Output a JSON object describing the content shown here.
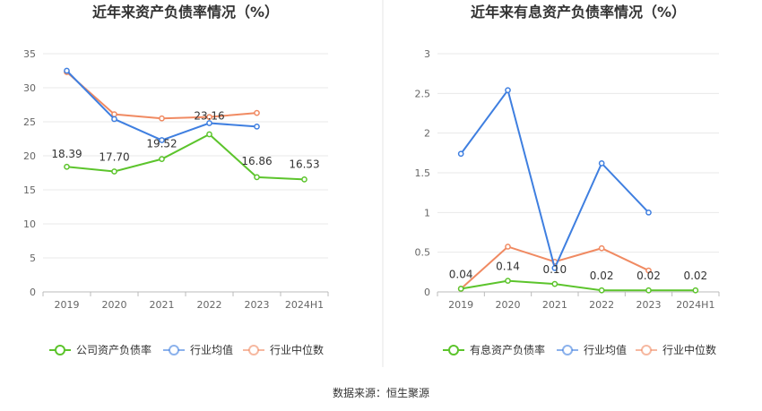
{
  "source": "数据来源：恒生聚源",
  "chart_data": [
    {
      "type": "line",
      "title": "近年来资产负债率情况（%）",
      "categories": [
        "2019",
        "2020",
        "2021",
        "2022",
        "2023",
        "2024H1"
      ],
      "y_ticks": [
        "0",
        "5",
        "10",
        "15",
        "20",
        "25",
        "30",
        "35"
      ],
      "ylim": [
        0,
        35
      ],
      "grid": true,
      "legend_position": "bottom",
      "series": [
        {
          "name": "公司资产负债率",
          "color": "#5cc42c",
          "values": [
            18.39,
            17.7,
            19.52,
            23.16,
            16.86,
            16.53
          ],
          "labels": [
            "18.39",
            "17.70",
            "19.52",
            "23.16",
            "16.86",
            "16.53"
          ]
        },
        {
          "name": "行业均值",
          "color": "#3f7fe0",
          "values": [
            32.5,
            25.4,
            22.3,
            24.8,
            24.3,
            null
          ]
        },
        {
          "name": "行业中位数",
          "color": "#f08a62",
          "values": [
            32.3,
            26.1,
            25.5,
            25.7,
            26.3,
            null
          ]
        }
      ]
    },
    {
      "type": "line",
      "title": "近年来有息资产负债率情况（%）",
      "categories": [
        "2019",
        "2020",
        "2021",
        "2022",
        "2023",
        "2024H1"
      ],
      "y_ticks": [
        "0",
        "0.5",
        "1",
        "1.5",
        "2",
        "2.5",
        "3"
      ],
      "ylim": [
        0,
        3
      ],
      "grid": true,
      "legend_position": "bottom",
      "series": [
        {
          "name": "有息资产负债率",
          "color": "#5cc42c",
          "values": [
            0.04,
            0.14,
            0.1,
            0.02,
            0.02,
            0.02
          ],
          "labels": [
            "0.04",
            "0.14",
            "0.10",
            "0.02",
            "0.02",
            "0.02"
          ]
        },
        {
          "name": "行业均值",
          "color": "#3f7fe0",
          "values": [
            1.74,
            2.54,
            0.3,
            1.62,
            1.0,
            null
          ]
        },
        {
          "name": "行业中位数",
          "color": "#f08a62",
          "values": [
            0.04,
            0.57,
            0.38,
            0.55,
            0.27,
            null
          ]
        }
      ]
    }
  ]
}
